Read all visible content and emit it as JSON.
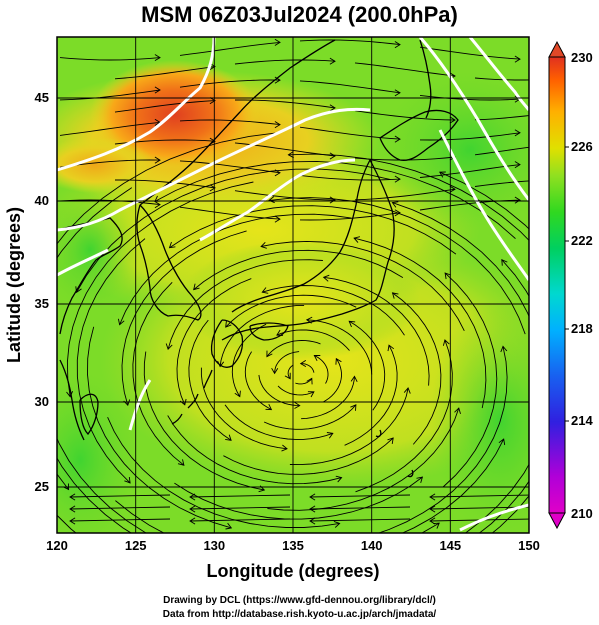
{
  "header": {
    "title": "MSM 06Z03Jul2024 (200.0hPa)"
  },
  "footer": {
    "line1": "Drawing by DCL (https://www.gfd-dennou.org/library/dcl/)",
    "line2": "Data from http://database.rish.kyoto-u.ac.jp/arch/jmadata/"
  },
  "axes": {
    "xlabel": "Longitude (degrees)",
    "ylabel": "Latitude  (degrees)",
    "x_ticks": [
      "120",
      "125",
      "130",
      "135",
      "140",
      "145",
      "150"
    ],
    "y_ticks": [
      "25",
      "30",
      "35",
      "40",
      "45"
    ],
    "xlim": [
      120,
      150
    ],
    "ylim": [
      22.4,
      47.6
    ]
  },
  "colorbar": {
    "ticks": [
      "230",
      "226",
      "222",
      "218",
      "214",
      "210"
    ],
    "range": [
      210,
      230
    ],
    "colors": [
      "#e000c8",
      "#b000d8",
      "#3020e0",
      "#1860f0",
      "#00b0ff",
      "#00d8d0",
      "#00d060",
      "#30d820",
      "#90e020",
      "#e0e000",
      "#ffb000",
      "#ff6000",
      "#e03020"
    ]
  },
  "map": {
    "field": "200hPa temperature (K) with wind streamlines",
    "warm_core_center": [
      127.5,
      45.0
    ],
    "cyclone_center": [
      135.5,
      30.5
    ],
    "colors": {
      "warm": "#e45020",
      "orange": "#f08a10",
      "yellow": "#d6e41a",
      "green": "#50d830"
    }
  }
}
